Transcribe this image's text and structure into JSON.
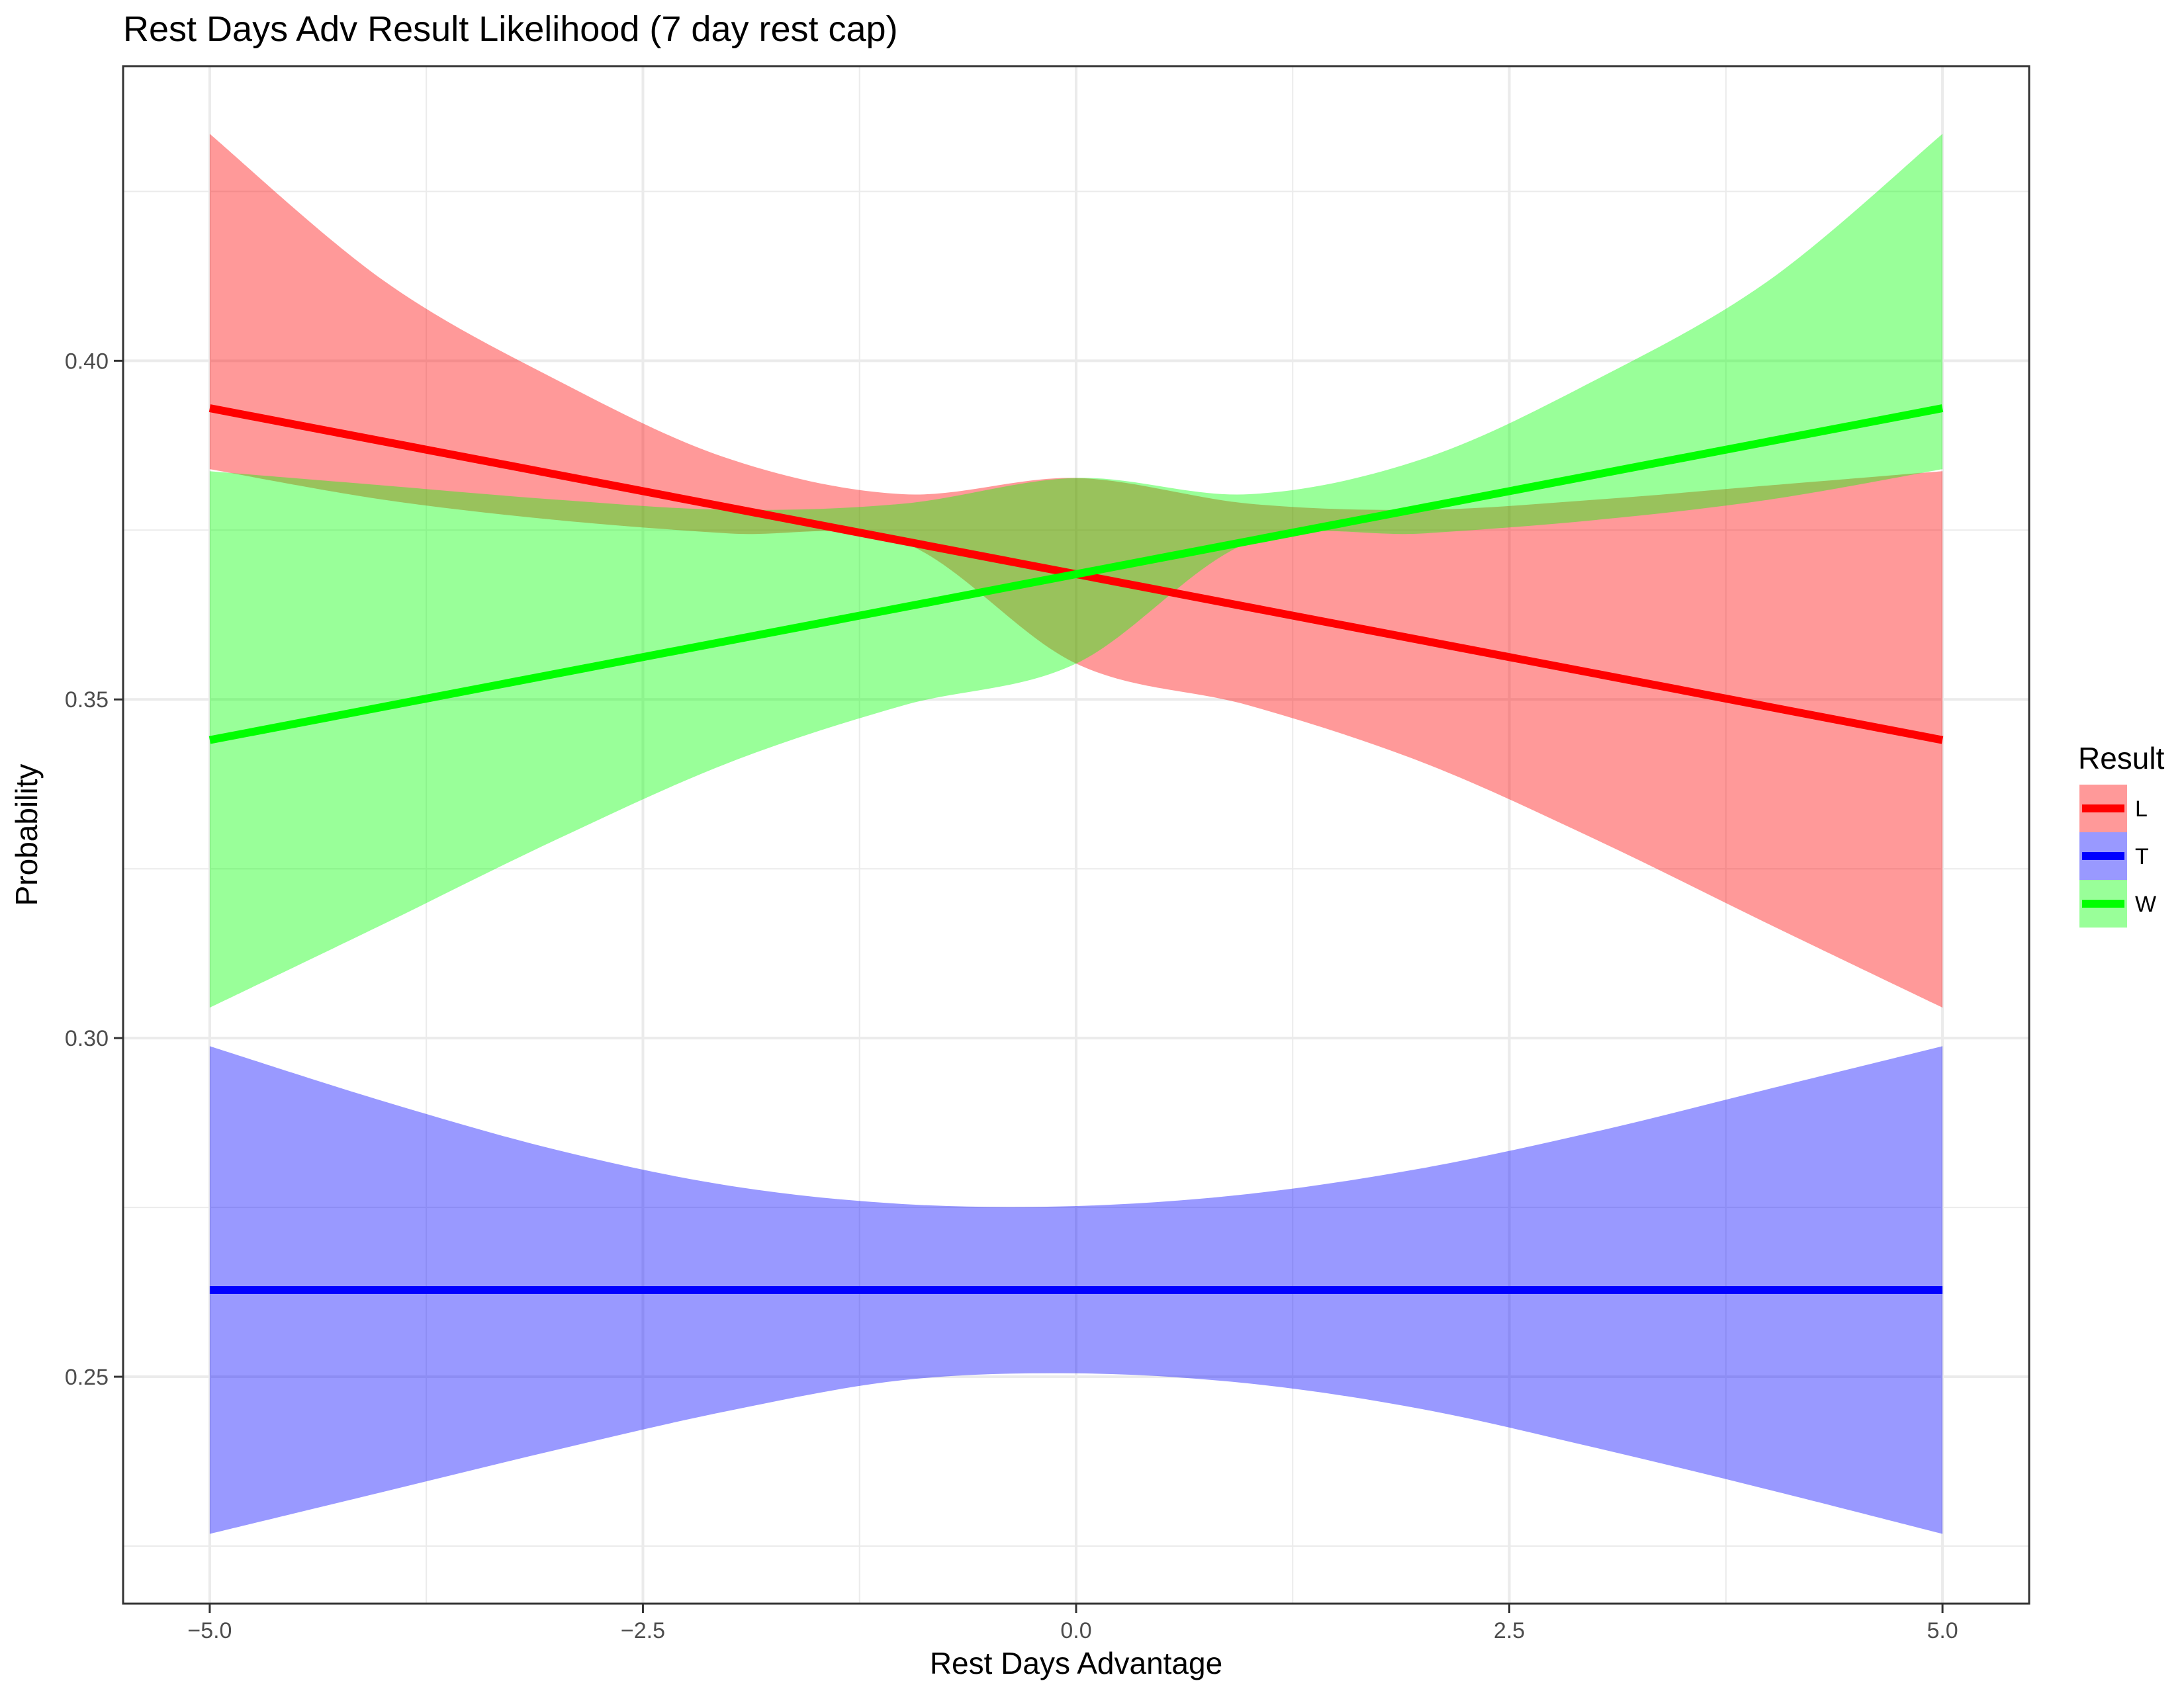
{
  "chart_data": {
    "type": "line",
    "title": "Rest Days Adv Result Likelihood (7 day rest cap)",
    "xlabel": "Rest Days Advantage",
    "ylabel": "Probability",
    "xlim": [
      -5.5,
      5.5
    ],
    "ylim": [
      0.2165,
      0.4435
    ],
    "x_ticks": [
      -5.0,
      -2.5,
      0.0,
      2.5,
      5.0
    ],
    "x_tick_labels": [
      "−5.0",
      "−2.5",
      "0.0",
      "2.5",
      "5.0"
    ],
    "y_ticks": [
      0.25,
      0.3,
      0.35,
      0.4
    ],
    "y_tick_labels": [
      "0.25",
      "0.30",
      "0.35",
      "0.40"
    ],
    "grid": true,
    "legend": {
      "title": "Result",
      "position": "right"
    },
    "series": [
      {
        "name": "L",
        "color": "#ff0000",
        "band_color": "#ff0000",
        "x": [
          -5,
          -4,
          -3,
          -2,
          -1,
          0,
          1,
          2,
          3,
          4,
          5
        ],
        "values": [
          0.393,
          0.3833,
          0.3737,
          0.3641,
          0.3545,
          0.369,
          0.3642,
          0.3593,
          0.3545,
          0.3496,
          0.344
        ],
        "lower": [
          0.384,
          0.3795,
          0.3765,
          0.3745,
          0.3732,
          0.3553,
          0.3491,
          0.3407,
          0.3293,
          0.3168,
          0.3045
        ],
        "upper": [
          0.4335,
          0.4119,
          0.3972,
          0.3855,
          0.3803,
          0.3827,
          0.3789,
          0.378,
          0.3795,
          0.3816,
          0.3837
        ]
      },
      {
        "name": "T",
        "color": "#0000ff",
        "band_color": "#0000ff",
        "x": [
          -5,
          -4,
          -3,
          -2,
          -1,
          0,
          1,
          2,
          3,
          4,
          5
        ],
        "values": [
          0.2628,
          0.2628,
          0.2628,
          0.2628,
          0.2628,
          0.2628,
          0.2628,
          0.2628,
          0.2628,
          0.2628,
          0.2628
        ],
        "lower": [
          0.2268,
          0.233,
          0.2392,
          0.245,
          0.2495,
          0.2505,
          0.249,
          0.2452,
          0.2395,
          0.2333,
          0.2268
        ],
        "upper": [
          0.2988,
          0.2907,
          0.2835,
          0.2782,
          0.2755,
          0.2752,
          0.277,
          0.2808,
          0.2862,
          0.2925,
          0.2988
        ]
      },
      {
        "name": "W",
        "color": "#00ff00",
        "band_color": "#00ff00",
        "x": [
          -5,
          -4,
          -3,
          -2,
          -1,
          0,
          1,
          2,
          3,
          4,
          5
        ],
        "values": [
          0.344,
          0.3537,
          0.3633,
          0.3729,
          0.3825,
          0.369,
          0.3787,
          0.3834,
          0.3882,
          0.393,
          0.393
        ],
        "lower": [
          0.3045,
          0.3168,
          0.3293,
          0.3407,
          0.3491,
          0.3553,
          0.3732,
          0.3745,
          0.3765,
          0.3795,
          0.384
        ],
        "upper": [
          0.3837,
          0.3816,
          0.3795,
          0.378,
          0.3789,
          0.3827,
          0.3803,
          0.3855,
          0.3972,
          0.4119,
          0.4335
        ]
      }
    ]
  }
}
